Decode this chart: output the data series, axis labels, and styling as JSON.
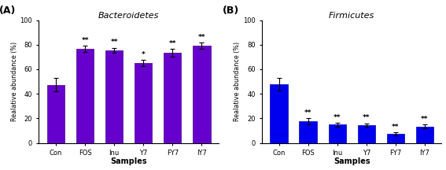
{
  "panel_A": {
    "title": "Bacteroidetes",
    "label": "(A)",
    "categories": [
      "Con",
      "FOS",
      "Inu",
      "Y7",
      "FY7",
      "IY7"
    ],
    "values": [
      47.5,
      76.5,
      75.5,
      65.0,
      73.5,
      79.0
    ],
    "errors": [
      5.5,
      2.5,
      2.0,
      2.5,
      3.0,
      2.5
    ],
    "sig_labels": [
      "",
      "**",
      "**",
      "*",
      "**",
      "**"
    ],
    "bar_color": "#6600CC",
    "bar_edge_color": "#440088",
    "ylabel": "Realative abundance (%)",
    "xlabel": "Samples",
    "ylim": [
      0,
      100
    ],
    "yticks": [
      0,
      20,
      40,
      60,
      80,
      100
    ]
  },
  "panel_B": {
    "title": "Firmicutes",
    "label": "(B)",
    "categories": [
      "Con",
      "FOS",
      "Inu",
      "Y7",
      "FY7",
      "IY7"
    ],
    "values": [
      48.0,
      17.5,
      15.0,
      14.5,
      7.5,
      13.5
    ],
    "errors": [
      5.0,
      2.5,
      1.5,
      1.5,
      1.0,
      1.5
    ],
    "sig_labels": [
      "",
      "**",
      "**",
      "**",
      "**",
      "**"
    ],
    "bar_color": "#0000EE",
    "bar_edge_color": "#0000AA",
    "ylabel": "Realative abundance (%)",
    "xlabel": "Samples",
    "ylim": [
      0,
      100
    ],
    "yticks": [
      0,
      20,
      40,
      60,
      80,
      100
    ]
  },
  "fig_bg": "#ffffff",
  "ax_bg": "#ffffff"
}
